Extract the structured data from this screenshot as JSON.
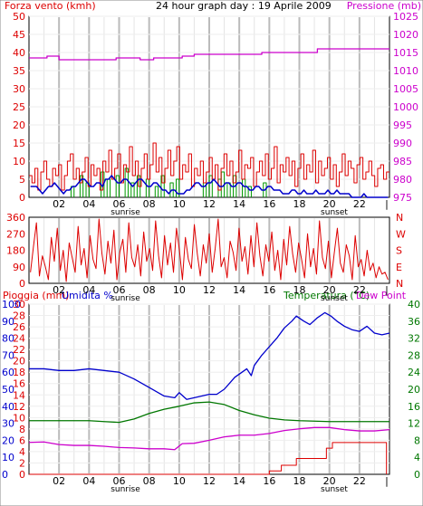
{
  "colors": {
    "wind": "#dd0000",
    "wind_avg": "#0000cc",
    "wind_green": "#009900",
    "pressure": "#cc00cc",
    "direction": "#dd0000",
    "rain": "#dd0000",
    "humidity": "#0000cc",
    "temperature": "#007700",
    "dewpoint": "#cc00cc",
    "grid_v": "#bbbbbb",
    "grid_h": "#eeeeee",
    "frame": "#000000"
  },
  "chart_data": [
    {
      "id": "wind_pressure",
      "type": "line",
      "title": "24 hour graph day : 19 Aprile 2009",
      "left_axis_title": "Forza vento (kmh)",
      "right_axis_title": "Pressione (mb)",
      "y_left_ticks": [
        "0",
        "5",
        "10",
        "15",
        "20",
        "25",
        "30",
        "35",
        "40",
        "45",
        "50"
      ],
      "y_left_range": [
        0,
        50
      ],
      "y_right_ticks": [
        "975",
        "980",
        "985",
        "990",
        "995",
        "1000",
        "1005",
        "1010",
        "1015",
        "1020",
        "1025"
      ],
      "y_right_range": [
        975,
        1025
      ],
      "x_ticks": [
        "02",
        "04",
        "06",
        "08",
        "10",
        "12",
        "14",
        "16",
        "18",
        "20",
        "22"
      ],
      "x_sub_labels": [
        {
          "label": "sunrise",
          "hour": 6.3
        },
        {
          "label": "sunset",
          "hour": 20.2
        }
      ],
      "series": [
        {
          "key": "gust",
          "color_key": "wind",
          "values": [
            6,
            4,
            8,
            2,
            7,
            10,
            5,
            3,
            8,
            6,
            9,
            2,
            6,
            10,
            12,
            5,
            8,
            4,
            7,
            11,
            3,
            9,
            6,
            8,
            2,
            10,
            7,
            13,
            5,
            8,
            12,
            4,
            9,
            7,
            14,
            6,
            10,
            3,
            8,
            12,
            5,
            9,
            15,
            7,
            11,
            4,
            8,
            13,
            6,
            10,
            14,
            5,
            9,
            7,
            12,
            3,
            8,
            6,
            10,
            4,
            7,
            11,
            5,
            9,
            2,
            8,
            12,
            6,
            10,
            4,
            7,
            13,
            5,
            9,
            8,
            11,
            3,
            7,
            10,
            6,
            12,
            5,
            8,
            14,
            4,
            9,
            7,
            11,
            6,
            10,
            3,
            8,
            12,
            5,
            9,
            7,
            13,
            4,
            10,
            6,
            8,
            11,
            5,
            9,
            3,
            7,
            12,
            6,
            10,
            8,
            4,
            9,
            11,
            5,
            7,
            10,
            6,
            3,
            8,
            9,
            5,
            7
          ]
        },
        {
          "key": "average",
          "color_key": "wind_avg",
          "values": [
            3,
            3,
            3,
            2,
            1,
            2,
            3,
            3,
            4,
            3,
            2,
            1,
            2,
            2,
            3,
            3,
            4,
            5,
            5,
            4,
            3,
            3,
            4,
            4,
            3,
            5,
            5,
            6,
            5,
            4,
            4,
            5,
            5,
            4,
            3,
            4,
            5,
            5,
            4,
            3,
            3,
            4,
            4,
            3,
            2,
            2,
            1,
            2,
            2,
            1,
            1,
            1,
            2,
            2,
            3,
            4,
            4,
            3,
            3,
            4,
            4,
            5,
            4,
            3,
            3,
            4,
            4,
            3,
            3,
            4,
            4,
            3,
            3,
            2,
            2,
            3,
            3,
            2,
            2,
            3,
            3,
            2,
            2,
            2,
            1,
            1,
            1,
            2,
            2,
            1,
            1,
            2,
            1,
            1,
            1,
            2,
            1,
            1,
            1,
            2,
            1,
            1,
            2,
            1,
            1,
            1,
            1,
            0,
            0,
            0,
            0,
            1,
            0,
            0,
            0,
            0,
            0,
            0,
            0,
            0
          ]
        },
        {
          "key": "green",
          "color_key": "wind_green",
          "values": [
            0,
            0,
            0,
            0,
            0,
            0,
            0,
            0,
            0,
            0,
            0,
            0,
            0,
            0,
            3,
            0,
            0,
            6,
            0,
            4,
            0,
            0,
            0,
            0,
            7,
            0,
            5,
            0,
            0,
            6,
            0,
            0,
            8,
            0,
            4,
            0,
            6,
            0,
            0,
            5,
            0,
            0,
            3,
            0,
            6,
            0,
            0,
            4,
            0,
            5,
            0,
            0,
            0,
            0,
            0,
            0,
            0,
            0,
            4,
            0,
            6,
            0,
            0,
            5,
            7,
            0,
            4,
            0,
            6,
            0,
            0,
            5,
            0,
            3,
            0,
            0,
            0,
            0,
            4,
            0,
            0,
            0,
            0,
            0,
            0,
            0,
            0,
            0,
            0,
            0,
            0,
            0,
            0,
            0,
            0,
            0,
            0,
            0,
            0,
            0,
            0,
            0,
            0,
            0,
            0,
            0,
            0,
            0,
            0,
            0,
            0,
            0,
            0,
            0,
            0,
            0,
            0,
            0,
            0,
            0
          ]
        },
        {
          "key": "pressure",
          "color_key": "pressure",
          "steps": [
            [
              0,
              1013.5
            ],
            [
              1.2,
              1014
            ],
            [
              2,
              1013
            ],
            [
              5.8,
              1013.5
            ],
            [
              7.4,
              1013
            ],
            [
              8.3,
              1013.5
            ],
            [
              10.2,
              1014
            ],
            [
              11,
              1014.5
            ],
            [
              13,
              1014.5
            ],
            [
              15.5,
              1015
            ],
            [
              19.2,
              1016
            ],
            [
              24,
              1016
            ]
          ]
        }
      ]
    },
    {
      "id": "wind_direction",
      "type": "line",
      "left_ticks": [
        "0",
        "90",
        "180",
        "270",
        "360"
      ],
      "right_ticks": [
        "N",
        "E",
        "S",
        "W",
        "N"
      ],
      "y_range": [
        0,
        360
      ],
      "x_ticks": [
        "02",
        "04",
        "06",
        "08",
        "10",
        "12",
        "14",
        "16",
        "18",
        "20",
        "22"
      ],
      "x_sub_labels": [
        {
          "label": "sunrise",
          "hour": 6.3
        },
        {
          "label": "sunset",
          "hour": 20.2
        }
      ],
      "series": [
        {
          "key": "direction",
          "color_key": "direction",
          "values": [
            60,
            200,
            330,
            40,
            150,
            90,
            20,
            250,
            120,
            300,
            70,
            180,
            10,
            220,
            140,
            60,
            310,
            100,
            190,
            30,
            260,
            130,
            80,
            350,
            160,
            50,
            230,
            110,
            290,
            20,
            170,
            240,
            60,
            330,
            140,
            90,
            210,
            40,
            280,
            120,
            190,
            70,
            340,
            150,
            30,
            260,
            100,
            220,
            60,
            300,
            180,
            20,
            250,
            130,
            80,
            320,
            160,
            40,
            210,
            110,
            270,
            60,
            190,
            350,
            90,
            140,
            30,
            230,
            170,
            70,
            300,
            120,
            200,
            50,
            260,
            90,
            330,
            150,
            40,
            210,
            120,
            280,
            70,
            180,
            20,
            240,
            100,
            310,
            160,
            60,
            220,
            130,
            30,
            270,
            90,
            190,
            50,
            340,
            140,
            80,
            230,
            30,
            170,
            300,
            110,
            60,
            210,
            150,
            20,
            260,
            90,
            130,
            40,
            180,
            70,
            110,
            30,
            90,
            50,
            60,
            20
          ]
        }
      ]
    },
    {
      "id": "temp_humidity_rain",
      "type": "line",
      "left_title_1": "Pioggia (mm)",
      "left_title_2": "Umidita %",
      "right_title_1": "Temperatura (°C)",
      "right_title_2": "Dew Point",
      "rain_ticks": [
        "0",
        "2",
        "4",
        "6",
        "8",
        "10",
        "12",
        "14",
        "16",
        "18",
        "20",
        "22",
        "24",
        "26",
        "28",
        "30"
      ],
      "rain_range": [
        0,
        30
      ],
      "humidity_ticks": [
        "0",
        "10",
        "20",
        "30",
        "40",
        "50",
        "60",
        "70",
        "80",
        "90",
        "100"
      ],
      "humidity_range": [
        0,
        100
      ],
      "temp_ticks": [
        "0",
        "4",
        "8",
        "12",
        "16",
        "20",
        "24",
        "28",
        "32",
        "36",
        "40"
      ],
      "temp_range": [
        0,
        40
      ],
      "x_ticks": [
        "02",
        "04",
        "06",
        "08",
        "10",
        "12",
        "14",
        "16",
        "18",
        "20",
        "22"
      ],
      "x_sub_labels": [
        {
          "label": "sunrise",
          "hour": 6.3
        },
        {
          "label": "sunset",
          "hour": 20.2
        }
      ],
      "series": [
        {
          "key": "humidity",
          "color_key": "humidity",
          "points": [
            [
              0,
              62
            ],
            [
              1,
              62
            ],
            [
              2,
              61
            ],
            [
              3,
              61
            ],
            [
              4,
              62
            ],
            [
              5,
              61
            ],
            [
              6,
              60
            ],
            [
              7,
              56
            ],
            [
              8,
              51
            ],
            [
              9,
              46
            ],
            [
              9.7,
              45
            ],
            [
              10,
              48
            ],
            [
              10.5,
              44
            ],
            [
              11,
              45
            ],
            [
              12,
              47
            ],
            [
              12.5,
              47
            ],
            [
              13,
              50
            ],
            [
              13.7,
              57
            ],
            [
              14.5,
              62
            ],
            [
              14.8,
              58
            ],
            [
              15,
              64
            ],
            [
              15.5,
              70
            ],
            [
              16,
              75
            ],
            [
              16.5,
              80
            ],
            [
              17,
              86
            ],
            [
              17.5,
              90
            ],
            [
              17.8,
              93
            ],
            [
              18.3,
              90
            ],
            [
              18.7,
              88
            ],
            [
              19.2,
              92
            ],
            [
              19.7,
              95
            ],
            [
              20.1,
              93
            ],
            [
              20.5,
              90
            ],
            [
              21,
              87
            ],
            [
              21.5,
              85
            ],
            [
              22,
              84
            ],
            [
              22.5,
              87
            ],
            [
              23,
              83
            ],
            [
              23.5,
              82
            ],
            [
              24,
              83
            ]
          ]
        },
        {
          "key": "temperature",
          "color_key": "temperature",
          "points": [
            [
              0,
              12.6
            ],
            [
              2,
              12.6
            ],
            [
              4,
              12.6
            ],
            [
              5,
              12.4
            ],
            [
              6,
              12.2
            ],
            [
              7,
              13
            ],
            [
              8,
              14.3
            ],
            [
              9,
              15.3
            ],
            [
              10,
              16
            ],
            [
              11,
              16.8
            ],
            [
              12,
              17
            ],
            [
              13,
              16.4
            ],
            [
              14,
              15
            ],
            [
              15,
              14
            ],
            [
              16,
              13.2
            ],
            [
              17,
              12.8
            ],
            [
              18,
              12.6
            ],
            [
              20,
              12.4
            ],
            [
              22,
              12.4
            ],
            [
              24,
              12.4
            ]
          ]
        },
        {
          "key": "dewpoint",
          "color_key": "dewpoint",
          "points": [
            [
              0,
              7.5
            ],
            [
              1,
              7.6
            ],
            [
              2,
              7
            ],
            [
              3,
              6.8
            ],
            [
              4,
              6.8
            ],
            [
              5,
              6.6
            ],
            [
              6,
              6.3
            ],
            [
              7,
              6.2
            ],
            [
              8,
              6
            ],
            [
              9,
              6
            ],
            [
              9.7,
              5.8
            ],
            [
              10.2,
              7.2
            ],
            [
              11,
              7.3
            ],
            [
              12,
              8
            ],
            [
              13,
              8.8
            ],
            [
              14,
              9.2
            ],
            [
              15,
              9.2
            ],
            [
              16,
              9.6
            ],
            [
              17,
              10.3
            ],
            [
              18,
              10.7
            ],
            [
              19,
              11
            ],
            [
              20,
              11
            ],
            [
              21,
              10.5
            ],
            [
              22,
              10.2
            ],
            [
              23,
              10.2
            ],
            [
              24,
              10.5
            ]
          ]
        },
        {
          "key": "rain",
          "color_key": "rain",
          "steps": [
            [
              0,
              0
            ],
            [
              16,
              0
            ],
            [
              16,
              0.6
            ],
            [
              16.8,
              0.6
            ],
            [
              16.8,
              1.6
            ],
            [
              17.8,
              1.6
            ],
            [
              17.8,
              2.8
            ],
            [
              19.8,
              2.8
            ],
            [
              19.8,
              4.6
            ],
            [
              20.2,
              4.6
            ],
            [
              20.2,
              5.6
            ],
            [
              23.8,
              5.6
            ],
            [
              23.8,
              0
            ]
          ]
        }
      ]
    }
  ]
}
